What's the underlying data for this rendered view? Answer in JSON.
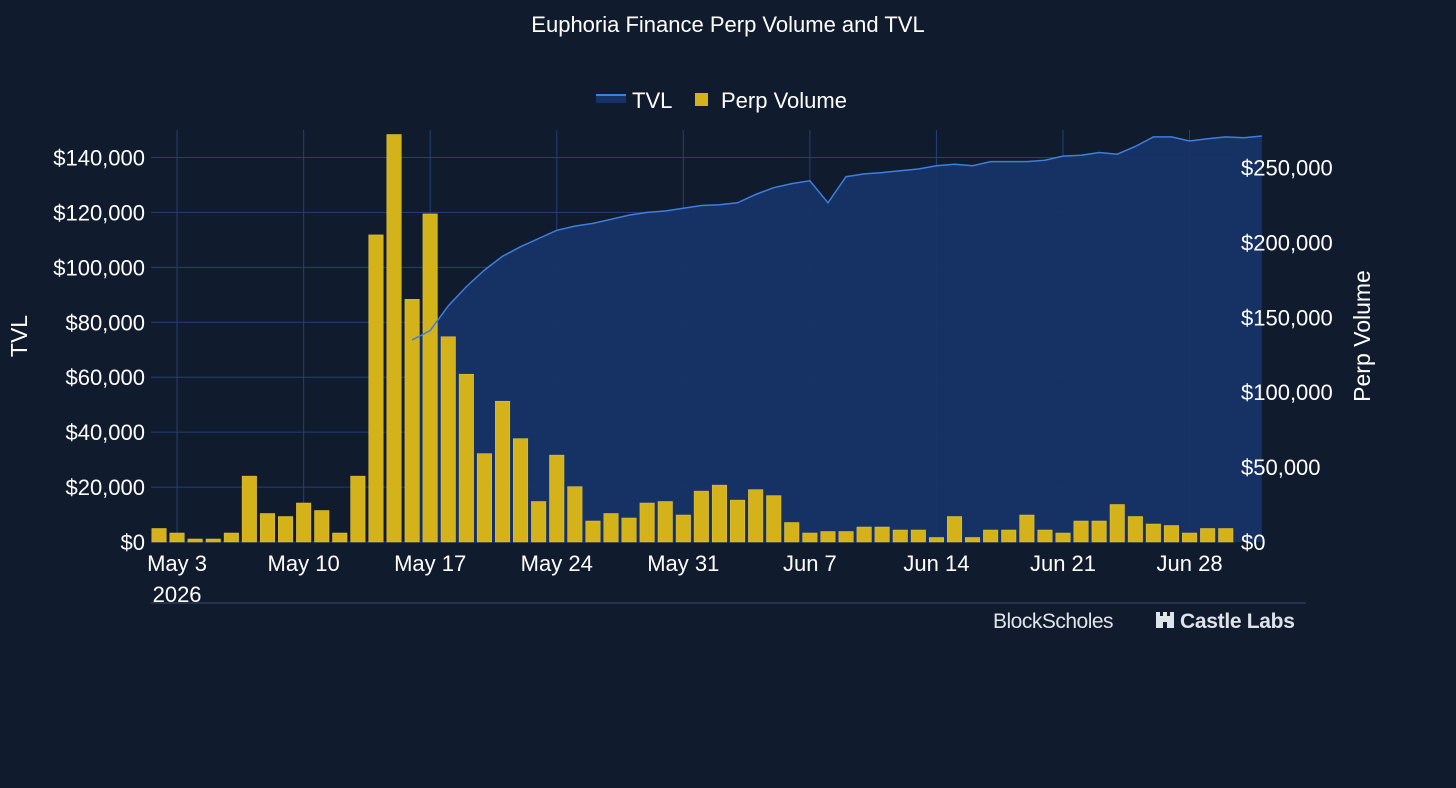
{
  "colors": {
    "background": "#111b2e",
    "grid": "#23407a",
    "tvl_line": "#3d7fe0",
    "tvl_fill": "#173366",
    "bar_fill": "#d4b219",
    "text": "#ffffff",
    "logo_text": "#dfe3ea"
  },
  "logos": {
    "blockscholes": "BlockScholes",
    "castlelabs": "Castle Labs"
  },
  "chart_data": {
    "type": "bar",
    "title": "Euphoria Finance Perp Volume and TVL",
    "legend": {
      "position": "top-center",
      "entries": [
        "TVL",
        "Perp Volume"
      ]
    },
    "ylabel": "TVL",
    "y2label": "Perp Volume",
    "grid": true,
    "x_start": "2026-05-02",
    "x_tick_labels": [
      "May 3",
      "May 10",
      "May 17",
      "May 24",
      "May 31",
      "Jun 7",
      "Jun 14",
      "Jun 21",
      "Jun 28"
    ],
    "x_tick_dates": [
      "2026-05-03",
      "2026-05-10",
      "2026-05-17",
      "2026-05-24",
      "2026-05-31",
      "2026-06-07",
      "2026-06-14",
      "2026-06-21",
      "2026-06-28"
    ],
    "x_year_label": "2026",
    "y_ticks": [
      "$0",
      "$20,000",
      "$40,000",
      "$60,000",
      "$80,000",
      "$100,000",
      "$120,000",
      "$140,000"
    ],
    "y2_ticks": [
      "$0",
      "$50,000",
      "$100,000",
      "$150,000",
      "$200,000",
      "$250,000"
    ],
    "ylim": [
      0,
      150000
    ],
    "y2lim": [
      0,
      275000
    ],
    "series": [
      {
        "name": "Perp Volume",
        "type": "bar",
        "axis": "y2",
        "values": [
          9000,
          6000,
          2000,
          2000,
          6000,
          44000,
          19000,
          17000,
          26000,
          21000,
          6000,
          44000,
          205000,
          272000,
          162000,
          219000,
          137000,
          112000,
          59000,
          94000,
          69000,
          27000,
          58000,
          37000,
          14000,
          19000,
          16000,
          26000,
          27000,
          18000,
          34000,
          38000,
          28000,
          35000,
          31000,
          13000,
          6000,
          7000,
          7000,
          10000,
          10000,
          8000,
          8000,
          3000,
          17000,
          3000,
          8000,
          8000,
          18000,
          8000,
          6000,
          14000,
          14000,
          25000,
          17000,
          12000,
          11000,
          6000,
          9000,
          9000
        ]
      },
      {
        "name": "TVL",
        "type": "area",
        "axis": "y",
        "start_index": 14,
        "values": [
          73500,
          77000,
          86000,
          93000,
          99000,
          104000,
          107500,
          110500,
          113500,
          115000,
          116000,
          117500,
          119000,
          120000,
          120500,
          121500,
          122500,
          122800,
          123500,
          126500,
          129000,
          130500,
          131500,
          123500,
          133000,
          134000,
          134500,
          135200,
          135800,
          137000,
          137500,
          137000,
          138500,
          138500,
          138500,
          139000,
          140500,
          140800,
          141800,
          141200,
          144000,
          147500,
          147500,
          146000,
          146800,
          147500,
          147200,
          147800
        ]
      }
    ]
  }
}
